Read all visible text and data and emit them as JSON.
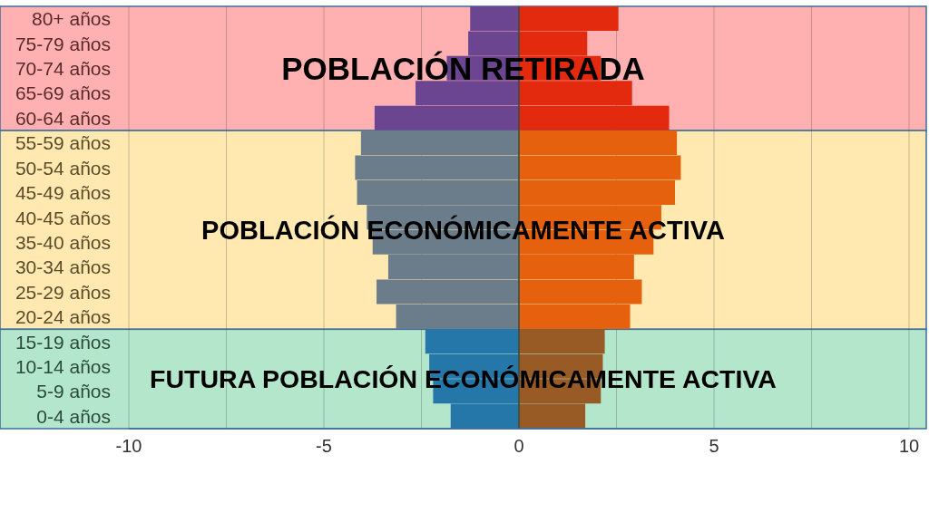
{
  "chart_data": {
    "type": "bar",
    "orientation": "horizontal",
    "stacked": true,
    "categories": [
      "80+ años",
      "75-79 años",
      "70-74 años",
      "65-69 años",
      "60-64 años",
      "55-59 años",
      "50-54 años",
      "45-49 años",
      "40-45 años",
      "35-40 años",
      "30-34 años",
      "25-29 años",
      "20-24 años",
      "15-19 años",
      "10-14 años",
      "5-9 años",
      "0-4 años"
    ],
    "series": [
      {
        "colors": [
          "#6c4590",
          "#6c4590",
          "#6c4590",
          "#6c4590",
          "#6c4590",
          "#6b7d8a",
          "#6b7d8a",
          "#6b7d8a",
          "#6b7d8a",
          "#6b7d8a",
          "#6b7d8a",
          "#6b7d8a",
          "#6b7d8a",
          "#2577aa",
          "#2577aa",
          "#2577aa",
          "#2577aa"
        ],
        "values": [
          -1.25,
          -1.3,
          -1.85,
          -2.65,
          -3.7,
          -4.05,
          -4.2,
          -4.15,
          -3.9,
          -3.75,
          -3.35,
          -3.65,
          -3.15,
          -2.4,
          -2.3,
          -2.2,
          -1.75
        ]
      },
      {
        "colors": [
          "#e3290e",
          "#e3290e",
          "#e3290e",
          "#e3290e",
          "#e3290e",
          "#e5610e",
          "#e5610e",
          "#e5610e",
          "#e5610e",
          "#e5610e",
          "#e5610e",
          "#e5610e",
          "#e5610e",
          "#985b26",
          "#985b26",
          "#985b26",
          "#985b26"
        ],
        "values": [
          2.55,
          1.75,
          2.1,
          2.9,
          3.85,
          4.05,
          4.15,
          4.0,
          3.65,
          3.45,
          2.95,
          3.15,
          2.85,
          2.2,
          2.15,
          2.1,
          1.7
        ]
      }
    ],
    "xlim": [
      -10,
      10
    ],
    "xticks": [
      -10,
      {
        "value": -7.5,
        "label": null
      },
      -5,
      {
        "value": -2.5,
        "label": null
      },
      0,
      {
        "value": 2.5,
        "label": null
      },
      5,
      {
        "value": 7.5,
        "label": null
      },
      10
    ],
    "grid": "x",
    "bands": [
      {
        "axis": "y",
        "from": "80+ años",
        "to": "60-64 años",
        "label": "POBLACIÓN RETIRADA",
        "color": "#ffb1b1"
      },
      {
        "axis": "y",
        "from": "55-59 años",
        "to": "20-24 años",
        "label": "POBLACIÓN ECONÓMICAMENTE ACTIVA",
        "color": "#ffe9b1"
      },
      {
        "axis": "y",
        "from": "15-19 años",
        "to": "0-4 años",
        "label": "FUTURA POBLACIÓN ECONÓMICAMENTE ACTIVA",
        "color": "#b3e6cb"
      }
    ],
    "ref_lines": [
      {
        "axis": "x",
        "value": 0,
        "color": "#3b4a3c"
      }
    ]
  }
}
